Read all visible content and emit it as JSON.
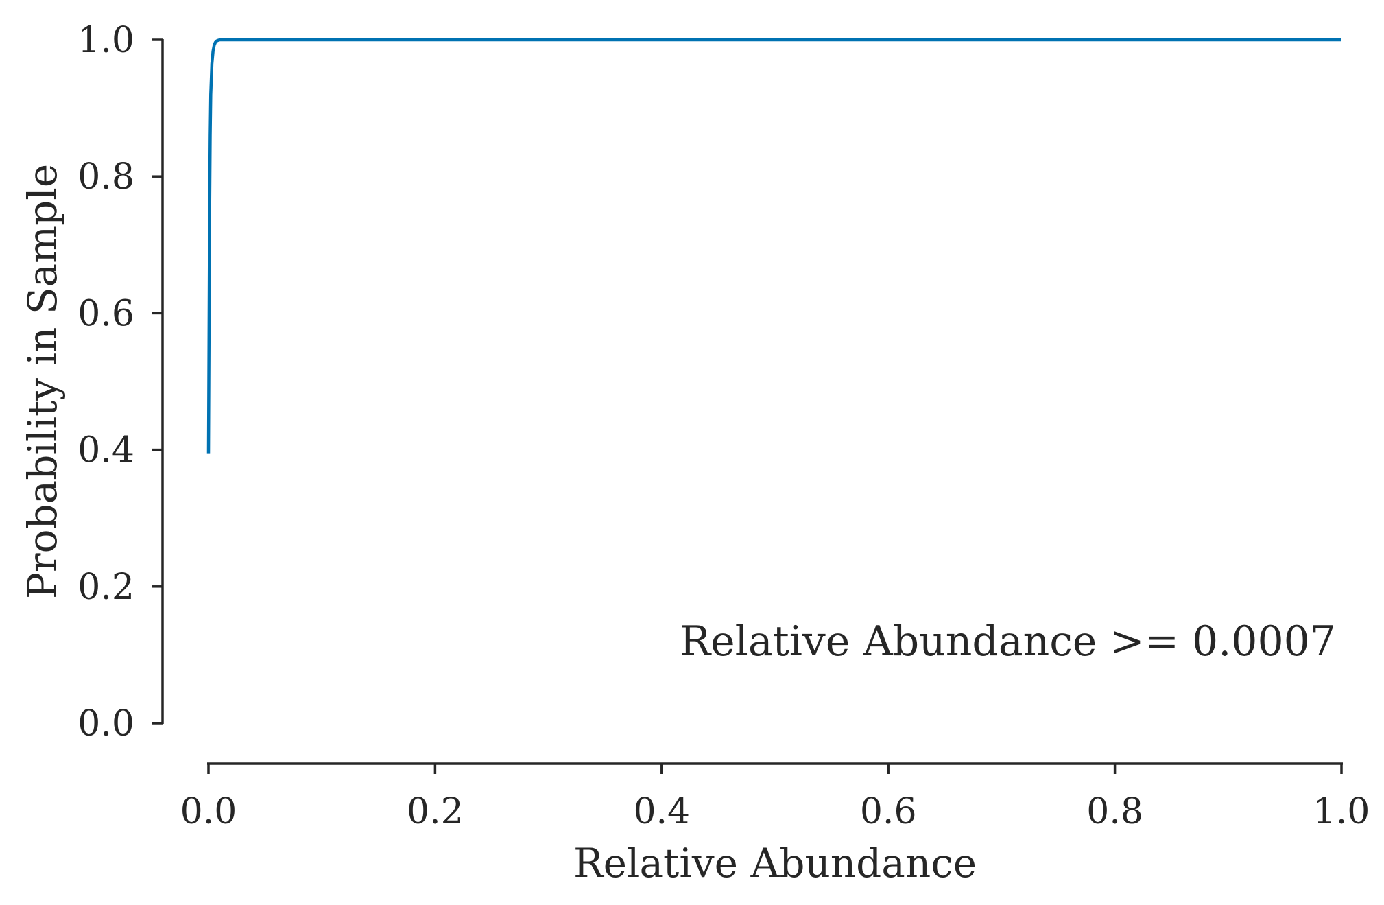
{
  "chart_data": {
    "type": "line",
    "xlabel": "Relative Abundance",
    "ylabel": "Probability in Sample",
    "xlim": [
      0.0,
      1.0
    ],
    "ylim": [
      0.0,
      1.0
    ],
    "xticks": [
      "0.0",
      "0.2",
      "0.4",
      "0.6",
      "0.8",
      "1.0"
    ],
    "yticks": [
      "0.0",
      "0.2",
      "0.4",
      "0.6",
      "0.8",
      "1.0"
    ],
    "grid": false,
    "annotation": "Relative Abundance >= 0.0007",
    "series": [
      {
        "color": "#0072b2",
        "x": [
          0.0,
          0.0003,
          0.0007,
          0.001,
          0.0015,
          0.002,
          0.003,
          0.004,
          0.005,
          0.006,
          0.007,
          0.008,
          0.01,
          0.015,
          0.02,
          0.05,
          0.1,
          0.2,
          0.3,
          0.4,
          0.5,
          0.6,
          0.7,
          0.8,
          0.9,
          1.0
        ],
        "y": [
          0.395,
          0.5,
          0.65,
          0.75,
          0.86,
          0.92,
          0.965,
          0.983,
          0.992,
          0.996,
          0.998,
          0.999,
          1.0,
          1.0,
          1.0,
          1.0,
          1.0,
          1.0,
          1.0,
          1.0,
          1.0,
          1.0,
          1.0,
          1.0,
          1.0,
          1.0
        ]
      }
    ]
  }
}
